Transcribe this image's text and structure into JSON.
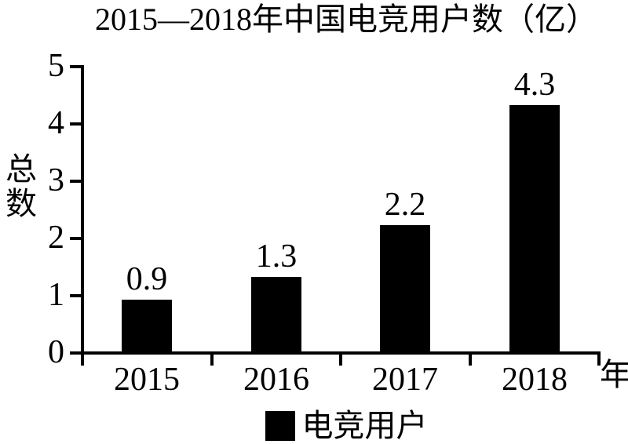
{
  "chart_data": {
    "type": "bar",
    "title": "2015—2018年中国电竞用户数（亿）",
    "categories": [
      "2015",
      "2016",
      "2017",
      "2018"
    ],
    "values": [
      0.9,
      1.3,
      2.2,
      4.3
    ],
    "bar_labels": [
      "0.9",
      "1.3",
      "2.2",
      "4.3"
    ],
    "ylabel": "总数",
    "xlabel": "年",
    "ylim": [
      0,
      5
    ],
    "yticks": [
      0,
      1,
      2,
      3,
      4,
      5
    ],
    "legend": [
      {
        "label": "电竞用户",
        "color": "#000000"
      }
    ],
    "legend_position": "bottom",
    "bar_color": "#000000",
    "axis_color": "#000000",
    "background": "#ffffff",
    "grid": false
  }
}
